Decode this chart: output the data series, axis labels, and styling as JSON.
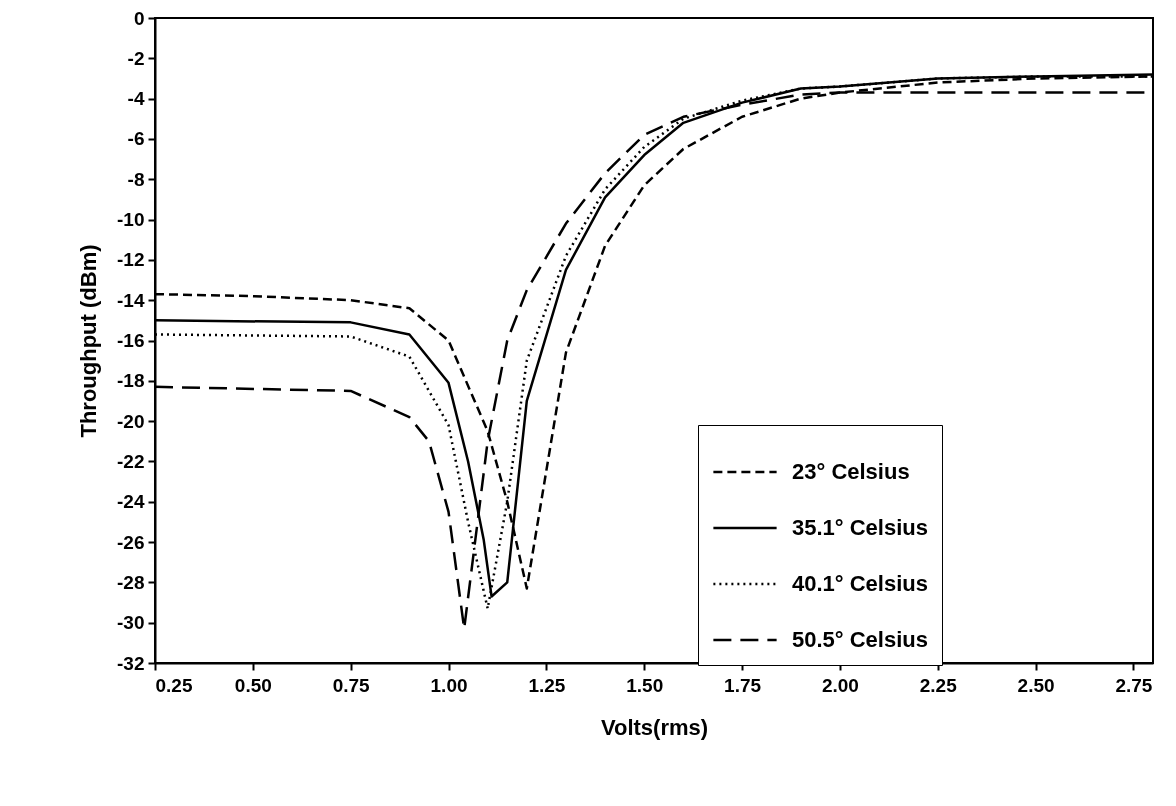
{
  "chart_data": {
    "type": "line",
    "xlabel": "Volts(rms)",
    "ylabel": "Throughput (dBm)",
    "xlim": [
      0.25,
      2.8
    ],
    "ylim": [
      -32,
      0
    ],
    "xticks": [
      {
        "value": 0.25,
        "label": "0.25"
      },
      {
        "value": 0.5,
        "label": "0.50"
      },
      {
        "value": 0.75,
        "label": "0.75"
      },
      {
        "value": 1,
        "label": "1.00"
      },
      {
        "value": 1.25,
        "label": "1.25"
      },
      {
        "value": 1.5,
        "label": "1.50"
      },
      {
        "value": 1.75,
        "label": "1.75"
      },
      {
        "value": 2,
        "label": "2.00"
      },
      {
        "value": 2.25,
        "label": "2.25"
      },
      {
        "value": 2.5,
        "label": "2.50"
      },
      {
        "value": 2.75,
        "label": "2.75"
      }
    ],
    "yticks": [
      0,
      -2,
      -4,
      -6,
      -8,
      -10,
      -12,
      -14,
      -16,
      -18,
      -20,
      -22,
      -24,
      -26,
      -28,
      -30,
      -32
    ],
    "grid": false,
    "legend": "right",
    "marker": "none",
    "series": [
      {
        "name": "23° Celsius",
        "color": "#000000",
        "line_style": "dashed",
        "x": [
          0.25,
          0.5,
          0.75,
          0.9,
          1.0,
          1.1,
          1.15,
          1.2,
          1.3,
          1.4,
          1.5,
          1.6,
          1.75,
          1.9,
          2.0,
          2.25,
          2.5,
          2.8
        ],
        "values": [
          -13.7,
          -13.8,
          -14.0,
          -14.4,
          -16.0,
          -20.5,
          -24,
          -28.3,
          -16.6,
          -11.3,
          -8.3,
          -6.5,
          -4.9,
          -4.0,
          -3.7,
          -3.2,
          -3.0,
          -2.9
        ]
      },
      {
        "name": "35.1° Celsius",
        "color": "#000000",
        "line_style": "solid",
        "x": [
          0.25,
          0.75,
          0.9,
          1.0,
          1.05,
          1.09,
          1.11,
          1.15,
          1.2,
          1.3,
          1.4,
          1.5,
          1.6,
          1.75,
          1.9,
          2.0,
          2.25,
          2.5,
          2.8
        ],
        "values": [
          -15.0,
          -15.1,
          -15.7,
          -18.1,
          -22,
          -25.9,
          -28.7,
          -28.0,
          -19,
          -12.5,
          -8.9,
          -6.8,
          -5.2,
          -4.2,
          -3.5,
          -3.4,
          -3.0,
          -2.9,
          -2.8
        ]
      },
      {
        "name": "40.1° Celsius",
        "color": "#000000",
        "line_style": "dotted",
        "x": [
          0.25,
          0.75,
          0.9,
          1.0,
          1.05,
          1.1,
          1.15,
          1.2,
          1.3,
          1.4,
          1.5,
          1.6,
          1.75,
          1.9,
          2.0,
          2.25,
          2.5,
          2.8
        ],
        "values": [
          -15.7,
          -15.8,
          -16.8,
          -20.2,
          -25,
          -29.3,
          -24,
          -17,
          -11.8,
          -8.5,
          -6.4,
          -5.0,
          -4.1,
          -3.5,
          -3.4,
          -3.0,
          -2.9,
          -2.9
        ]
      },
      {
        "name": "50.5° Celsius",
        "color": "#000000",
        "line_style": "dashed",
        "x": [
          0.25,
          0.75,
          0.9,
          0.95,
          1.0,
          1.04,
          1.1,
          1.15,
          1.2,
          1.3,
          1.4,
          1.5,
          1.6,
          1.75,
          1.9,
          2.0,
          2.25,
          2.5,
          2.8
        ],
        "values": [
          -18.3,
          -18.5,
          -19.8,
          -21,
          -24.5,
          -30.3,
          -21,
          -16,
          -13.5,
          -10.2,
          -7.7,
          -5.8,
          -4.9,
          -4.3,
          -3.8,
          -3.7,
          -3.7,
          -3.7,
          -3.7
        ]
      }
    ]
  }
}
